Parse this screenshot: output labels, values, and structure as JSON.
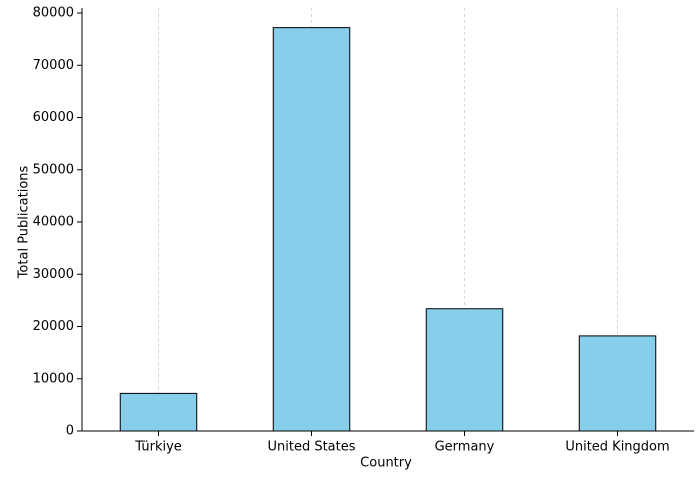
{
  "chart_data": {
    "type": "bar",
    "x_label": "Country",
    "y_label": "Total Publications",
    "categories": [
      "Türkiye",
      "United States",
      "Germany",
      "United Kingdom"
    ],
    "values": [
      7200,
      77200,
      23400,
      18200
    ],
    "color": "#87ceeb",
    "ylim": [
      0,
      80000
    ],
    "yticks": [
      0,
      10000,
      20000,
      30000,
      40000,
      50000,
      60000,
      70000,
      80000
    ],
    "grid": true
  }
}
